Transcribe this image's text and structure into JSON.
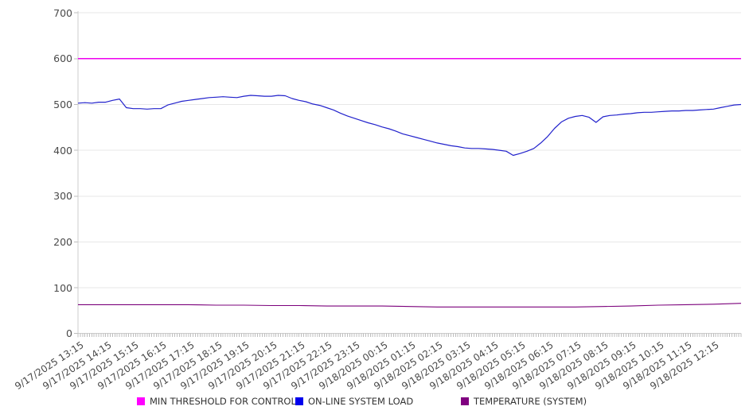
{
  "page": {
    "background": "#ffffff"
  },
  "chart_data": {
    "type": "line",
    "title": "",
    "xlabel": "",
    "ylabel": "",
    "ylim": [
      0,
      700
    ],
    "y_ticks": [
      0,
      100,
      200,
      300,
      400,
      500,
      600,
      700
    ],
    "grid": "horizontal",
    "legend_position": "bottom",
    "x_hours_span": 24,
    "x_tick_labels": [
      "9/17/2025 13:15",
      "9/17/2025 14:15",
      "9/17/2025 15:15",
      "9/17/2025 16:15",
      "9/17/2025 17:15",
      "9/17/2025 18:15",
      "9/17/2025 19:15",
      "9/17/2025 20:15",
      "9/17/2025 21:15",
      "9/17/2025 22:15",
      "9/17/2025 23:15",
      "9/18/2025 00:15",
      "9/18/2025 01:15",
      "9/18/2025 02:15",
      "9/18/2025 03:15",
      "9/18/2025 04:15",
      "9/18/2025 05:15",
      "9/18/2025 06:15",
      "9/18/2025 07:15",
      "9/18/2025 08:15",
      "9/18/2025 09:15",
      "9/18/2025 10:15",
      "9/18/2025 11:15",
      "9/18/2025 12:15"
    ],
    "series": [
      {
        "name": "MIN THRESHOLD FOR CONTROL",
        "color": "#EE00EE",
        "stroke_width": 1.5,
        "step_min": 1440,
        "values": [
          600,
          600
        ]
      },
      {
        "name": "ON-LINE SYSTEM LOAD",
        "color": "#2222CC",
        "stroke_width": 1.2,
        "step_min": 15,
        "values": [
          503,
          504,
          503,
          505,
          505,
          509,
          512,
          493,
          491,
          491,
          490,
          491,
          491,
          499,
          503,
          507,
          509,
          511,
          513,
          515,
          516,
          517,
          516,
          515,
          518,
          520,
          519,
          518,
          518,
          520,
          519,
          513,
          509,
          506,
          501,
          498,
          493,
          488,
          481,
          475,
          470,
          465,
          460,
          456,
          451,
          447,
          442,
          436,
          432,
          428,
          424,
          420,
          416,
          413,
          410,
          408,
          405,
          404,
          404,
          403,
          402,
          400,
          398,
          389,
          393,
          398,
          404,
          416,
          430,
          448,
          462,
          470,
          474,
          476,
          472,
          461,
          473,
          476,
          477,
          479,
          480,
          482,
          483,
          483,
          484,
          485,
          486,
          486,
          487,
          487,
          488,
          489,
          490,
          493,
          496,
          499,
          500
        ]
      },
      {
        "name": "TEMPERATURE (SYSTEM)",
        "color": "#7B007B",
        "stroke_width": 1.1,
        "step_min": 60,
        "values": [
          63,
          63,
          63,
          63,
          63,
          62,
          62,
          61,
          61,
          60,
          60,
          60,
          59,
          58,
          58,
          58,
          58,
          58,
          58,
          59,
          60,
          62,
          63,
          64,
          66
        ]
      }
    ]
  },
  "legend": {
    "items": [
      {
        "label": "MIN THRESHOLD FOR CONTROL",
        "color": "#FF00FF"
      },
      {
        "label": "ON-LINE SYSTEM LOAD",
        "color": "#0000EE"
      },
      {
        "label": "TEMPERATURE (SYSTEM)",
        "color": "#800080"
      }
    ]
  },
  "colors": {
    "grid_line": "#e7e7e7",
    "axis_line": "#cccccc",
    "tick_mark": "#bdbdbd",
    "axis_text": "#4a4a4a"
  }
}
